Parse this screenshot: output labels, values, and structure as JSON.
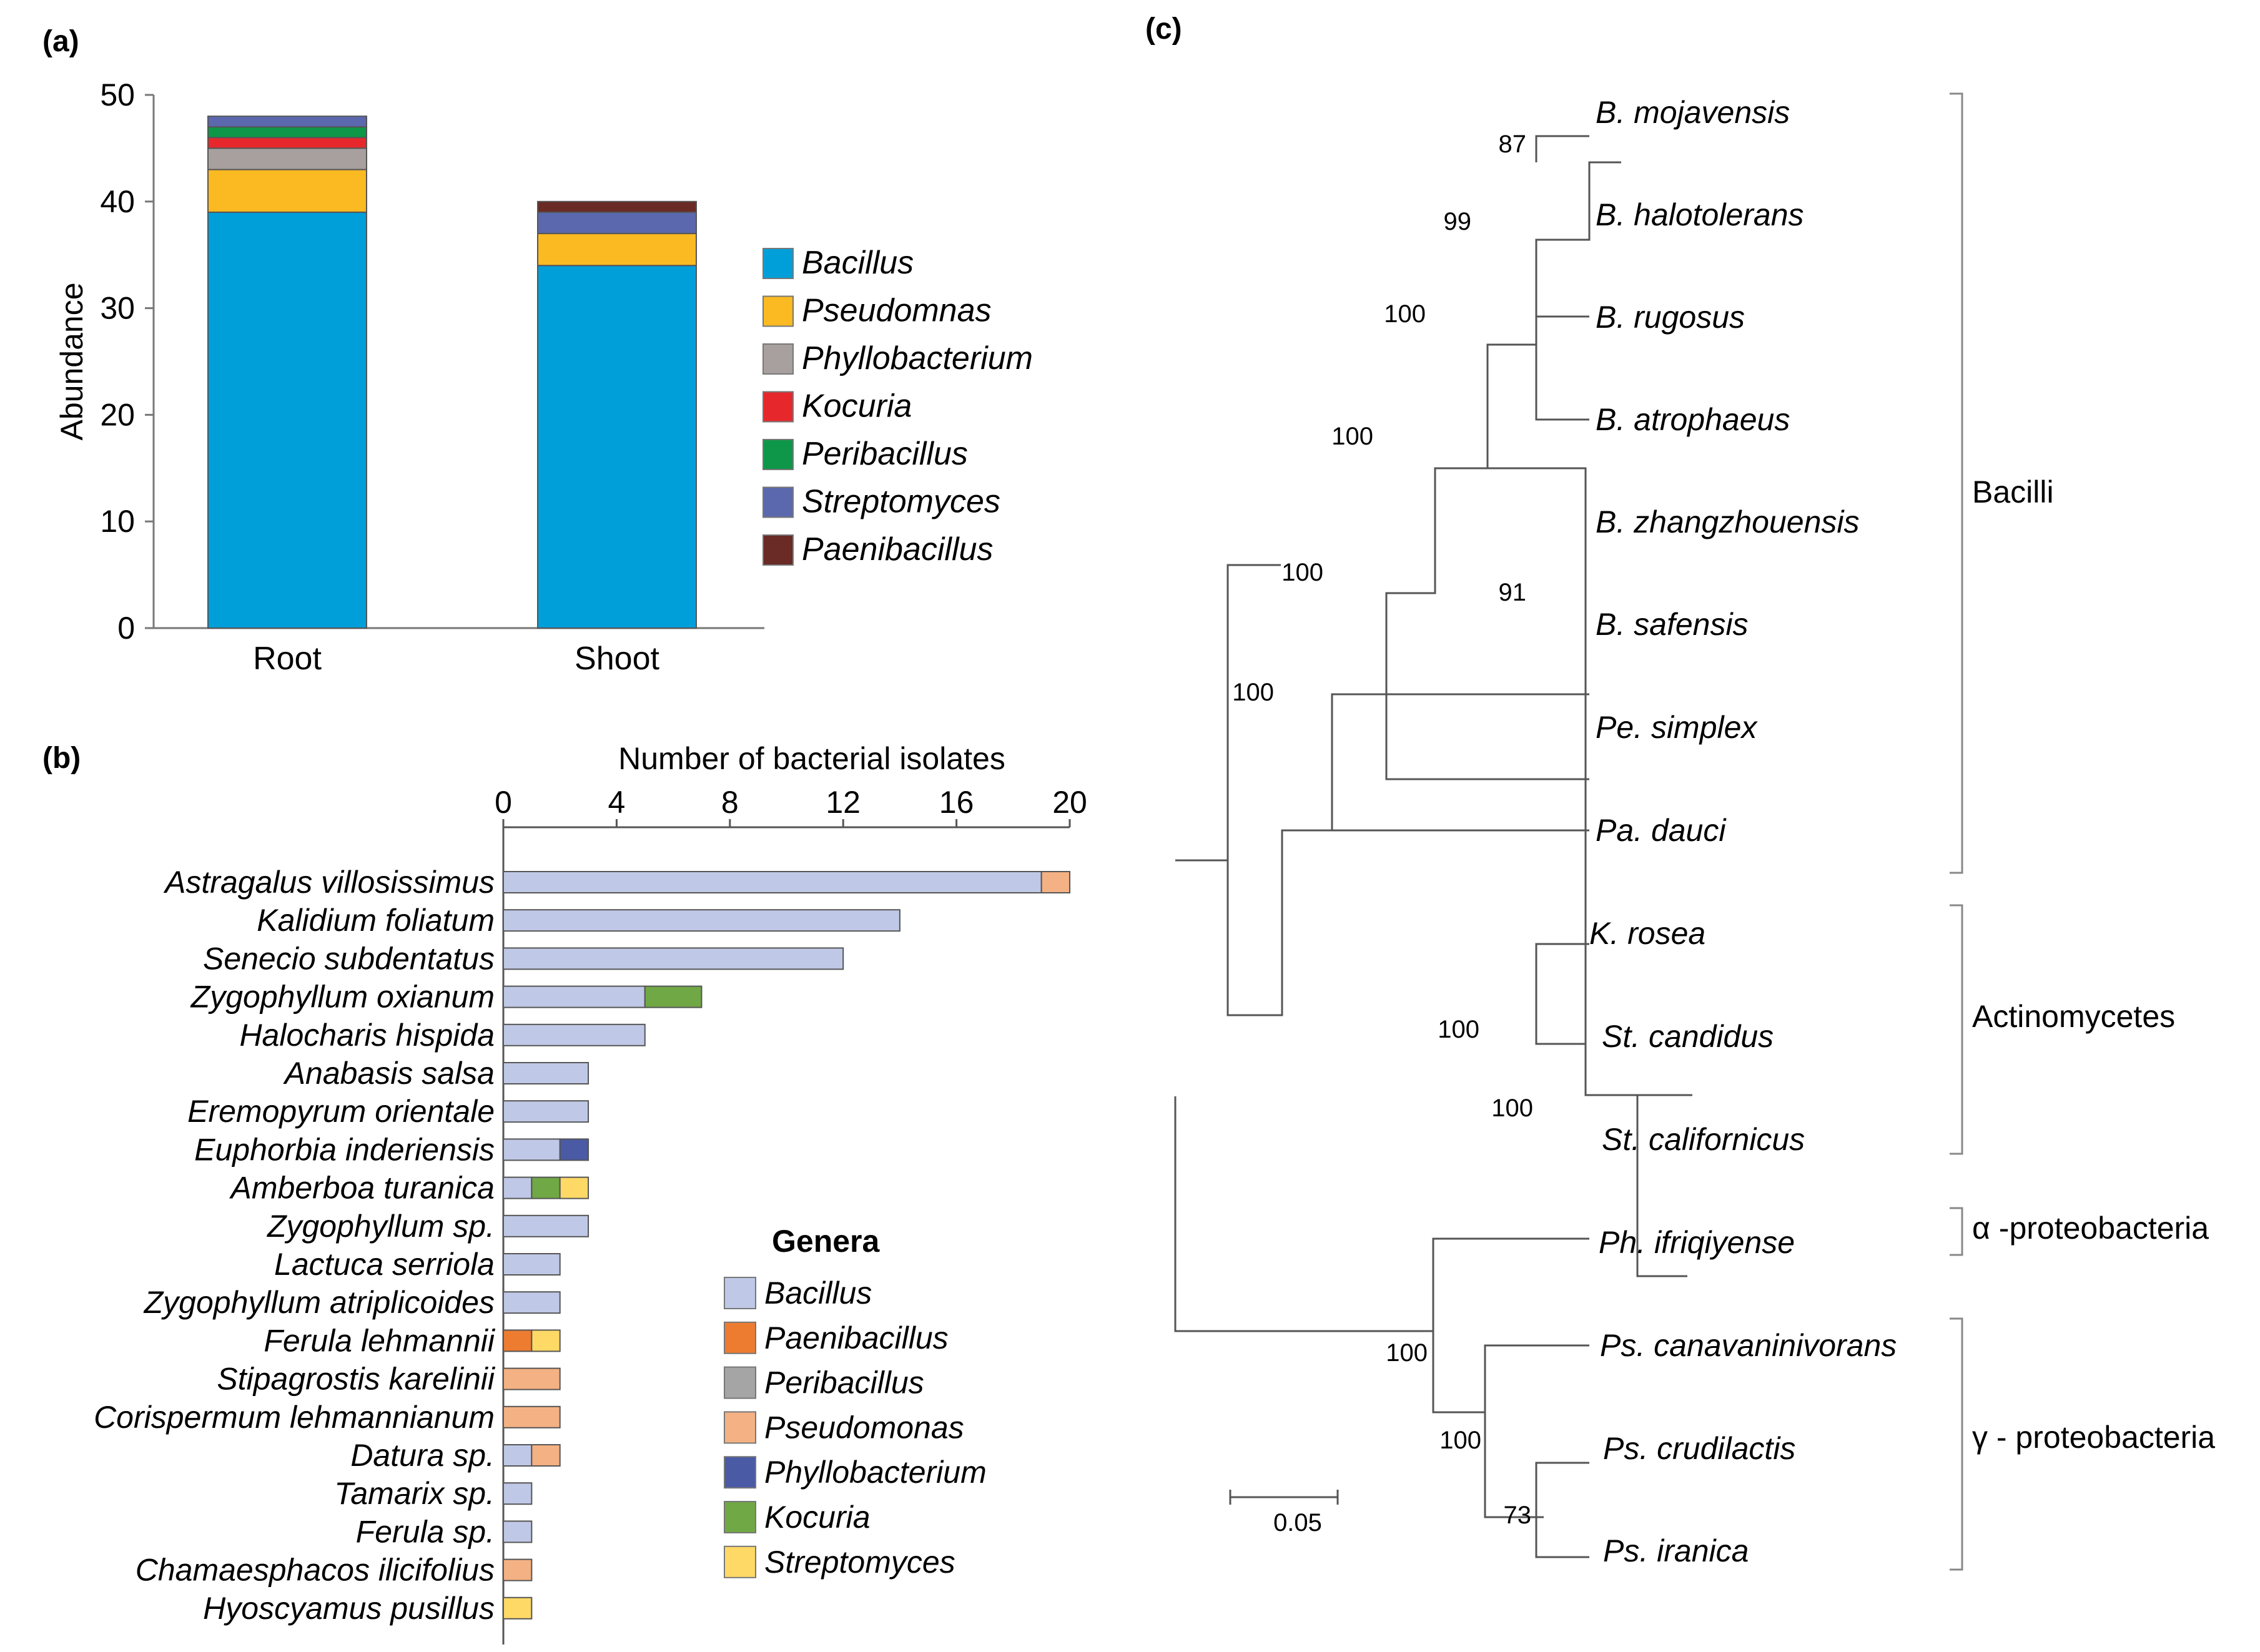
{
  "chart_data": [
    {
      "panel": "(a)",
      "type": "bar",
      "stacked": true,
      "ylabel": "Abundance",
      "ylim": [
        0,
        50
      ],
      "yticks": [
        0,
        10,
        20,
        30,
        40,
        50
      ],
      "categories": [
        "Root",
        "Shoot"
      ],
      "series": [
        {
          "name": "Bacillus",
          "color": "#009fda",
          "values": [
            39,
            34
          ]
        },
        {
          "name": "Pseudomnas",
          "color": "#fbb922",
          "values": [
            4,
            3
          ]
        },
        {
          "name": "Phyllobacterium",
          "color": "#a7a09f",
          "values": [
            2,
            0
          ]
        },
        {
          "name": "Kocuria",
          "color": "#e6282d",
          "values": [
            1,
            0
          ]
        },
        {
          "name": "Peribacillus",
          "color": "#0e9748",
          "values": [
            1,
            0
          ]
        },
        {
          "name": "Streptomyces",
          "color": "#5b68ae",
          "values": [
            1,
            2
          ]
        },
        {
          "name": "Paenibacillus",
          "color": "#6a2a25",
          "values": [
            0,
            1
          ]
        }
      ]
    },
    {
      "panel": "(b)",
      "type": "bar",
      "orientation": "horizontal",
      "stacked": true,
      "title": "Number of bacterial isolates",
      "xlim": [
        0,
        20
      ],
      "xticks": [
        0,
        4,
        8,
        12,
        16,
        20
      ],
      "legend_title": "Genera",
      "genera": [
        {
          "name": "Bacillus",
          "color": "#bfc8e6"
        },
        {
          "name": "Paenibacillus",
          "color": "#ed7c31"
        },
        {
          "name": "Peribacillus",
          "color": "#a5a5a5"
        },
        {
          "name": "Pseudomonas",
          "color": "#f4b183"
        },
        {
          "name": "Phyllobacterium",
          "color": "#4a5aa4"
        },
        {
          "name": "Kocuria",
          "color": "#70a845"
        },
        {
          "name": "Streptomyces",
          "color": "#ffd966"
        }
      ],
      "rows": [
        {
          "label": "Astragalus villosissimus",
          "parts": [
            {
              "genus": "Bacillus",
              "value": 19
            },
            {
              "genus": "Pseudomonas",
              "value": 1
            }
          ]
        },
        {
          "label": "Kalidium foliatum",
          "parts": [
            {
              "genus": "Bacillus",
              "value": 14
            }
          ]
        },
        {
          "label": "Senecio subdentatus",
          "parts": [
            {
              "genus": "Bacillus",
              "value": 12
            }
          ]
        },
        {
          "label": "Zygophyllum oxianum",
          "parts": [
            {
              "genus": "Bacillus",
              "value": 5
            },
            {
              "genus": "Kocuria",
              "value": 2
            }
          ]
        },
        {
          "label": "Halocharis hispida",
          "parts": [
            {
              "genus": "Bacillus",
              "value": 5
            }
          ]
        },
        {
          "label": "Anabasis salsa",
          "parts": [
            {
              "genus": "Bacillus",
              "value": 3
            }
          ]
        },
        {
          "label": "Eremopyrum orientale",
          "parts": [
            {
              "genus": "Bacillus",
              "value": 3
            }
          ]
        },
        {
          "label": "Euphorbia inderiensis",
          "parts": [
            {
              "genus": "Bacillus",
              "value": 2
            },
            {
              "genus": "Phyllobacterium",
              "value": 1
            }
          ]
        },
        {
          "label": "Amberboa turanica",
          "parts": [
            {
              "genus": "Bacillus",
              "value": 1
            },
            {
              "genus": "Kocuria",
              "value": 1
            },
            {
              "genus": "Streptomyces",
              "value": 1
            }
          ]
        },
        {
          "label": "Zygophyllum sp.",
          "parts": [
            {
              "genus": "Bacillus",
              "value": 3
            }
          ]
        },
        {
          "label": "Lactuca serriola",
          "parts": [
            {
              "genus": "Bacillus",
              "value": 2
            }
          ]
        },
        {
          "label": "Zygophyllum atriplicoides",
          "parts": [
            {
              "genus": "Bacillus",
              "value": 2
            }
          ]
        },
        {
          "label": "Ferula lehmannii",
          "parts": [
            {
              "genus": "Paenibacillus",
              "value": 1
            },
            {
              "genus": "Streptomyces",
              "value": 1
            }
          ]
        },
        {
          "label": "Stipagrostis karelinii",
          "parts": [
            {
              "genus": "Pseudomonas",
              "value": 2
            }
          ]
        },
        {
          "label": "Corispermum lehmannianum",
          "parts": [
            {
              "genus": "Pseudomonas",
              "value": 2
            }
          ]
        },
        {
          "label": "Datura sp.",
          "parts": [
            {
              "genus": "Bacillus",
              "value": 1
            },
            {
              "genus": "Pseudomonas",
              "value": 1
            }
          ]
        },
        {
          "label": "Tamarix sp.",
          "parts": [
            {
              "genus": "Bacillus",
              "value": 1
            }
          ]
        },
        {
          "label": "Ferula sp.",
          "parts": [
            {
              "genus": "Bacillus",
              "value": 1
            }
          ]
        },
        {
          "label": "Chamaesphacos ilicifolius",
          "parts": [
            {
              "genus": "Pseudomonas",
              "value": 1
            }
          ]
        },
        {
          "label": "Hyoscyamus pusillus",
          "parts": [
            {
              "genus": "Streptomyces",
              "value": 1
            }
          ]
        }
      ]
    },
    {
      "panel": "(c)",
      "type": "phylogenetic_tree",
      "scale_bar": "0.05",
      "taxa": [
        "B. mojavensis",
        "B. halotolerans",
        "B. rugosus",
        "B. atrophaeus",
        "B. zhangzhouensis",
        "B. safensis",
        "Pe. simplex",
        "Pa. dauci",
        "K. rosea",
        "St. candidus",
        "St. californicus",
        "Ph. ifriqiyense",
        "Ps. canavaninivorans",
        "Ps. crudilactis",
        "Ps. iranica"
      ],
      "bootstrap": [
        "87",
        "99",
        "100",
        "100",
        "91",
        "100",
        "100",
        "100",
        "100",
        "100",
        "100",
        "73"
      ],
      "groups": [
        "Bacilli",
        "Actinomycetes",
        "α -proteobacteria",
        "γ - proteobacteria"
      ]
    }
  ]
}
